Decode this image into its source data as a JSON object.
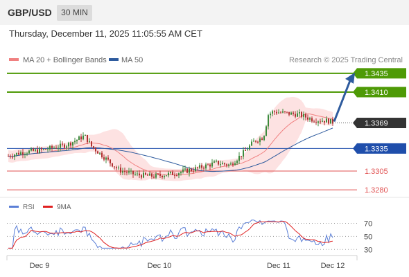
{
  "header": {
    "symbol": "GBP/USD",
    "timeframe": "30 MIN",
    "timestamp": "Thursday, December 11, 2025 11:05:55 AM CET"
  },
  "legend": {
    "ma20_label": "MA 20 + Bollinger Bands",
    "ma50_label": "MA 50",
    "ma20_color": "#f08080",
    "ma50_color": "#2e5b9e",
    "credit": "Research © 2025 Trading Central"
  },
  "chart_data": [
    {
      "type": "candlestick",
      "title": "GBP/USD 30 MIN",
      "x_tick_labels": [
        "Dec 9",
        "Dec 10",
        "Dec 11",
        "Dec 12"
      ],
      "ylim": [
        1.327,
        1.3445
      ],
      "last_price": 1.3369,
      "levels": [
        {
          "value": 1.3435,
          "label": "1.3435",
          "kind": "resistance"
        },
        {
          "value": 1.341,
          "label": "1.3410",
          "kind": "resistance"
        },
        {
          "value": 1.3335,
          "label": "1.3335",
          "kind": "pivot"
        },
        {
          "value": 1.3305,
          "label": "1.3305",
          "kind": "support"
        },
        {
          "value": 1.328,
          "label": "1.3280",
          "kind": "support"
        }
      ],
      "colors": {
        "bull": "#3c8a3c",
        "bear": "#b03030",
        "resistance": "#4e9a06",
        "pivot": "#1f4eab",
        "support": "#e05050",
        "current": "#333333",
        "band_fill": "#fde2e2",
        "arrow": "#2e5b9e"
      }
    },
    {
      "type": "line",
      "title": "RSI",
      "series": [
        {
          "name": "RSI",
          "color": "#5b7fd6"
        },
        {
          "name": "9MA",
          "color": "#e02020"
        }
      ],
      "ylim": [
        25,
        80
      ],
      "y_ticks": [
        70,
        50,
        30
      ]
    }
  ]
}
